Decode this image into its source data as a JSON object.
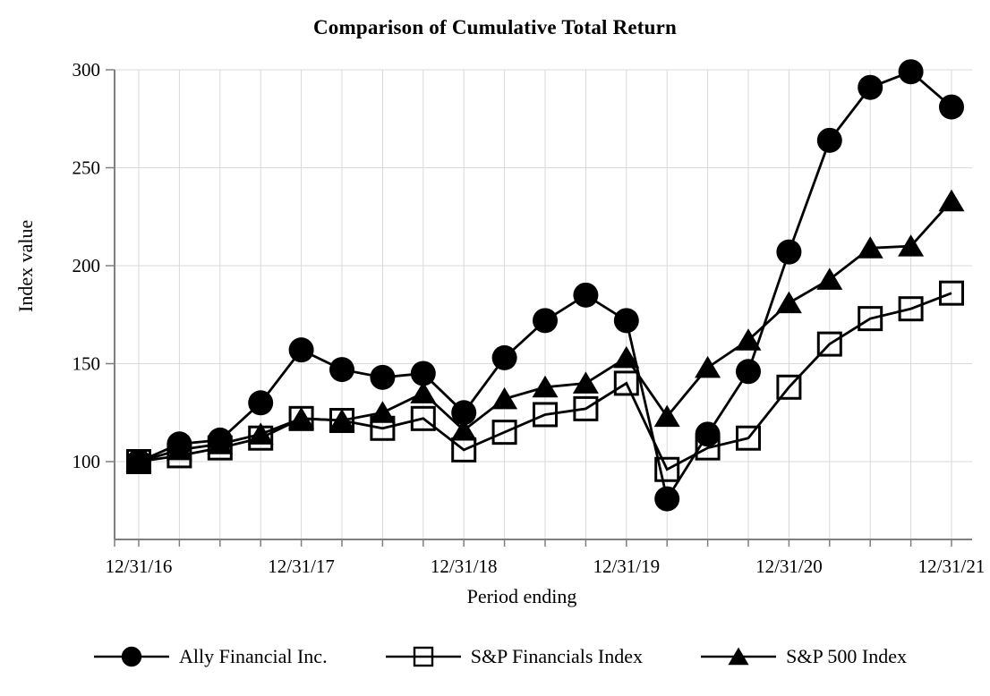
{
  "chart_data": {
    "type": "line",
    "title": "Comparison of Cumulative Total Return",
    "xlabel": "Period ending",
    "ylabel": "Index value",
    "x": [
      "12/31/16",
      "3/31/17",
      "6/30/17",
      "9/30/17",
      "12/31/17",
      "3/31/18",
      "6/30/18",
      "9/30/18",
      "12/31/18",
      "3/31/19",
      "6/30/19",
      "9/30/19",
      "12/31/19",
      "3/31/20",
      "6/30/20",
      "9/30/20",
      "12/31/20",
      "3/31/21",
      "6/30/21",
      "9/30/21",
      "12/31/21"
    ],
    "x_axis_tick_labels": [
      "12/31/16",
      "12/31/17",
      "12/31/18",
      "12/31/19",
      "12/31/20",
      "12/31/21"
    ],
    "y_ticks": [
      100,
      150,
      200,
      250,
      300
    ],
    "ylim": [
      60,
      300
    ],
    "grid": true,
    "legend_position": "bottom",
    "series": [
      {
        "name": "Ally Financial Inc.",
        "marker": "filled-circle",
        "color": "#000000",
        "values": [
          100,
          109,
          111,
          130,
          157,
          147,
          143,
          145,
          125,
          153,
          172,
          185,
          172,
          81,
          114,
          146,
          207,
          264,
          291,
          299,
          281
        ]
      },
      {
        "name": "S&P Financials Index",
        "marker": "open-square",
        "color": "#000000",
        "values": [
          100,
          103,
          107,
          112,
          122,
          121,
          117,
          122,
          106,
          115,
          124,
          127,
          140,
          96,
          107,
          112,
          138,
          160,
          173,
          178,
          186
        ]
      },
      {
        "name": "S&P 500 Index",
        "marker": "filled-triangle",
        "color": "#000000",
        "values": [
          100,
          106,
          109,
          114,
          122,
          121,
          125,
          135,
          116,
          132,
          138,
          140,
          153,
          123,
          148,
          162,
          181,
          193,
          209,
          210,
          233
        ]
      }
    ],
    "colors": {
      "series": "#000000",
      "grid": "#d9d9d9",
      "axis": "#7f7f7f",
      "background": "#ffffff",
      "text": "#000000"
    }
  }
}
